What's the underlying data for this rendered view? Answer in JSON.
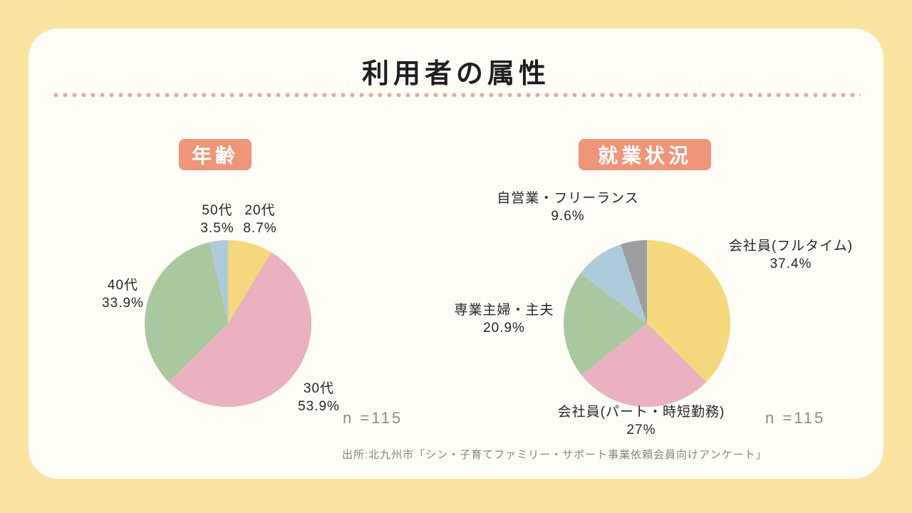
{
  "page": {
    "title": "利用者の属性",
    "source": "出所:北九州市「シン・子育てファミリー・サポート事業依頼会員向けアンケート」"
  },
  "colors": {
    "background": "#fae3a1",
    "card": "#fffdf6",
    "badge": "#ef9579",
    "divider_dots": "#efa29b",
    "slice_yellow": "#f5d87d",
    "slice_pink": "#eab1bf",
    "slice_green": "#a9c8a0",
    "slice_blue": "#aecbdc",
    "slice_gray": "#9c9ea1"
  },
  "chart_data": [
    {
      "type": "pie",
      "title": "年齢",
      "n_label": "n =115",
      "start_angle_deg": 0,
      "direction": "clockwise-from-top",
      "slices": [
        {
          "label": "20代",
          "value": 8.7,
          "pct": "8.7%",
          "color": "#f5d87d"
        },
        {
          "label": "30代",
          "value": 53.9,
          "pct": "53.9%",
          "color": "#eab1bf"
        },
        {
          "label": "40代",
          "value": 33.9,
          "pct": "33.9%",
          "color": "#a9c8a0"
        },
        {
          "label": "50代",
          "value": 3.5,
          "pct": "3.5%",
          "color": "#aecbdc"
        }
      ]
    },
    {
      "type": "pie",
      "title": "就業状況",
      "n_label": "n =115",
      "start_angle_deg": 0,
      "direction": "clockwise-from-top",
      "slices": [
        {
          "label": "会社員(フルタイム)",
          "value": 37.4,
          "pct": "37.4%",
          "color": "#f5d87d"
        },
        {
          "label": "会社員(パート・時短勤務)",
          "value": 27,
          "pct": "27%",
          "color": "#eab1bf"
        },
        {
          "label": "専業主婦・主夫",
          "value": 20.9,
          "pct": "20.9%",
          "color": "#a9c8a0"
        },
        {
          "label": "自営業・フリーランス",
          "value": 9.6,
          "pct": "9.6%",
          "color": "#aecbdc"
        },
        {
          "label": "",
          "value": 5.1,
          "pct": "",
          "color": "#9c9ea1"
        }
      ]
    }
  ]
}
